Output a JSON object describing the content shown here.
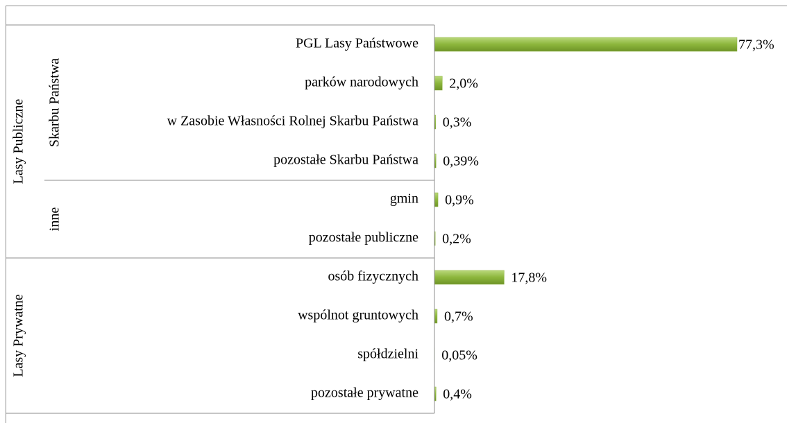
{
  "chart_data": {
    "type": "bar",
    "orientation": "horizontal",
    "color": "#8cb63c",
    "groups": [
      {
        "name": "Lasy Publiczne",
        "subgroups": [
          {
            "name": "Skarbu Państwa",
            "categories": [
              "PGL Lasy Państwowe",
              "parków narodowych",
              "w Zasobie Własności Rolnej Skarbu Państwa",
              "pozostałe Skarbu Państwa"
            ],
            "values": [
              77.3,
              2.0,
              0.3,
              0.39
            ],
            "value_labels": [
              "77,3%",
              "2,0%",
              "0,3%",
              "0,39%"
            ]
          },
          {
            "name": "inne",
            "categories": [
              "gmin",
              "pozostałe publiczne"
            ],
            "values": [
              0.9,
              0.2
            ],
            "value_labels": [
              "0,9%",
              "0,2%"
            ]
          }
        ]
      },
      {
        "name": "Lasy Prywatne",
        "subgroups": [
          {
            "categories": [
              "osób fizycznych",
              "wspólnot gruntowych",
              "spółdzielni",
              "pozostałe prywatne"
            ],
            "values": [
              17.8,
              0.7,
              0.05,
              0.4
            ],
            "value_labels": [
              "17,8%",
              "0,7%",
              "0,05%",
              "0,4%"
            ]
          }
        ]
      }
    ]
  }
}
